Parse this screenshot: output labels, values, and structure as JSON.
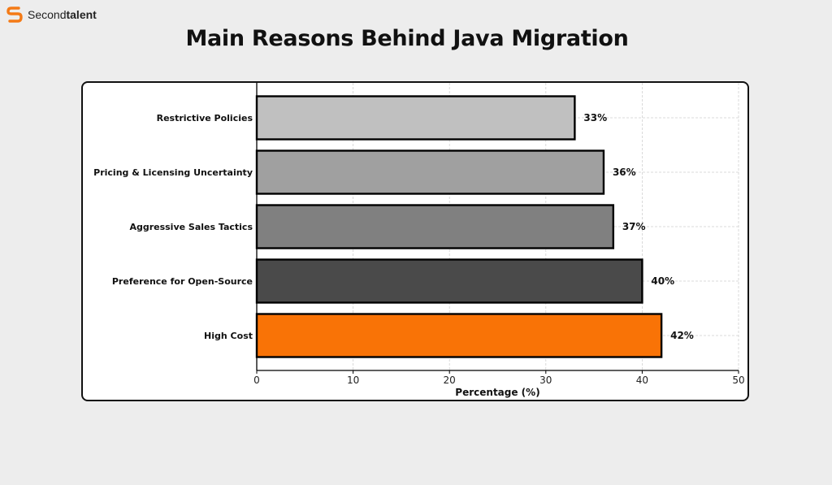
{
  "brand": {
    "name_first": "Second",
    "name_second": "talent",
    "accent": "#f47a16"
  },
  "chart_data": {
    "type": "bar",
    "orientation": "horizontal",
    "title": "Main Reasons Behind Java Migration",
    "xlabel": "Percentage (%)",
    "ylabel": "",
    "xlim": [
      0,
      50
    ],
    "xticks": [
      0,
      10,
      20,
      30,
      40,
      50
    ],
    "grid": true,
    "categories": [
      "Restrictive Policies",
      "Pricing & Licensing Uncertainty",
      "Aggressive Sales Tactics",
      "Preference for Open-Source",
      "High Cost"
    ],
    "values": [
      33,
      36,
      37,
      40,
      42
    ],
    "value_labels": [
      "33%",
      "36%",
      "37%",
      "40%",
      "42%"
    ],
    "colors": [
      "#c0c0c0",
      "#a0a0a0",
      "#808080",
      "#4a4a4a",
      "#f97306"
    ]
  }
}
